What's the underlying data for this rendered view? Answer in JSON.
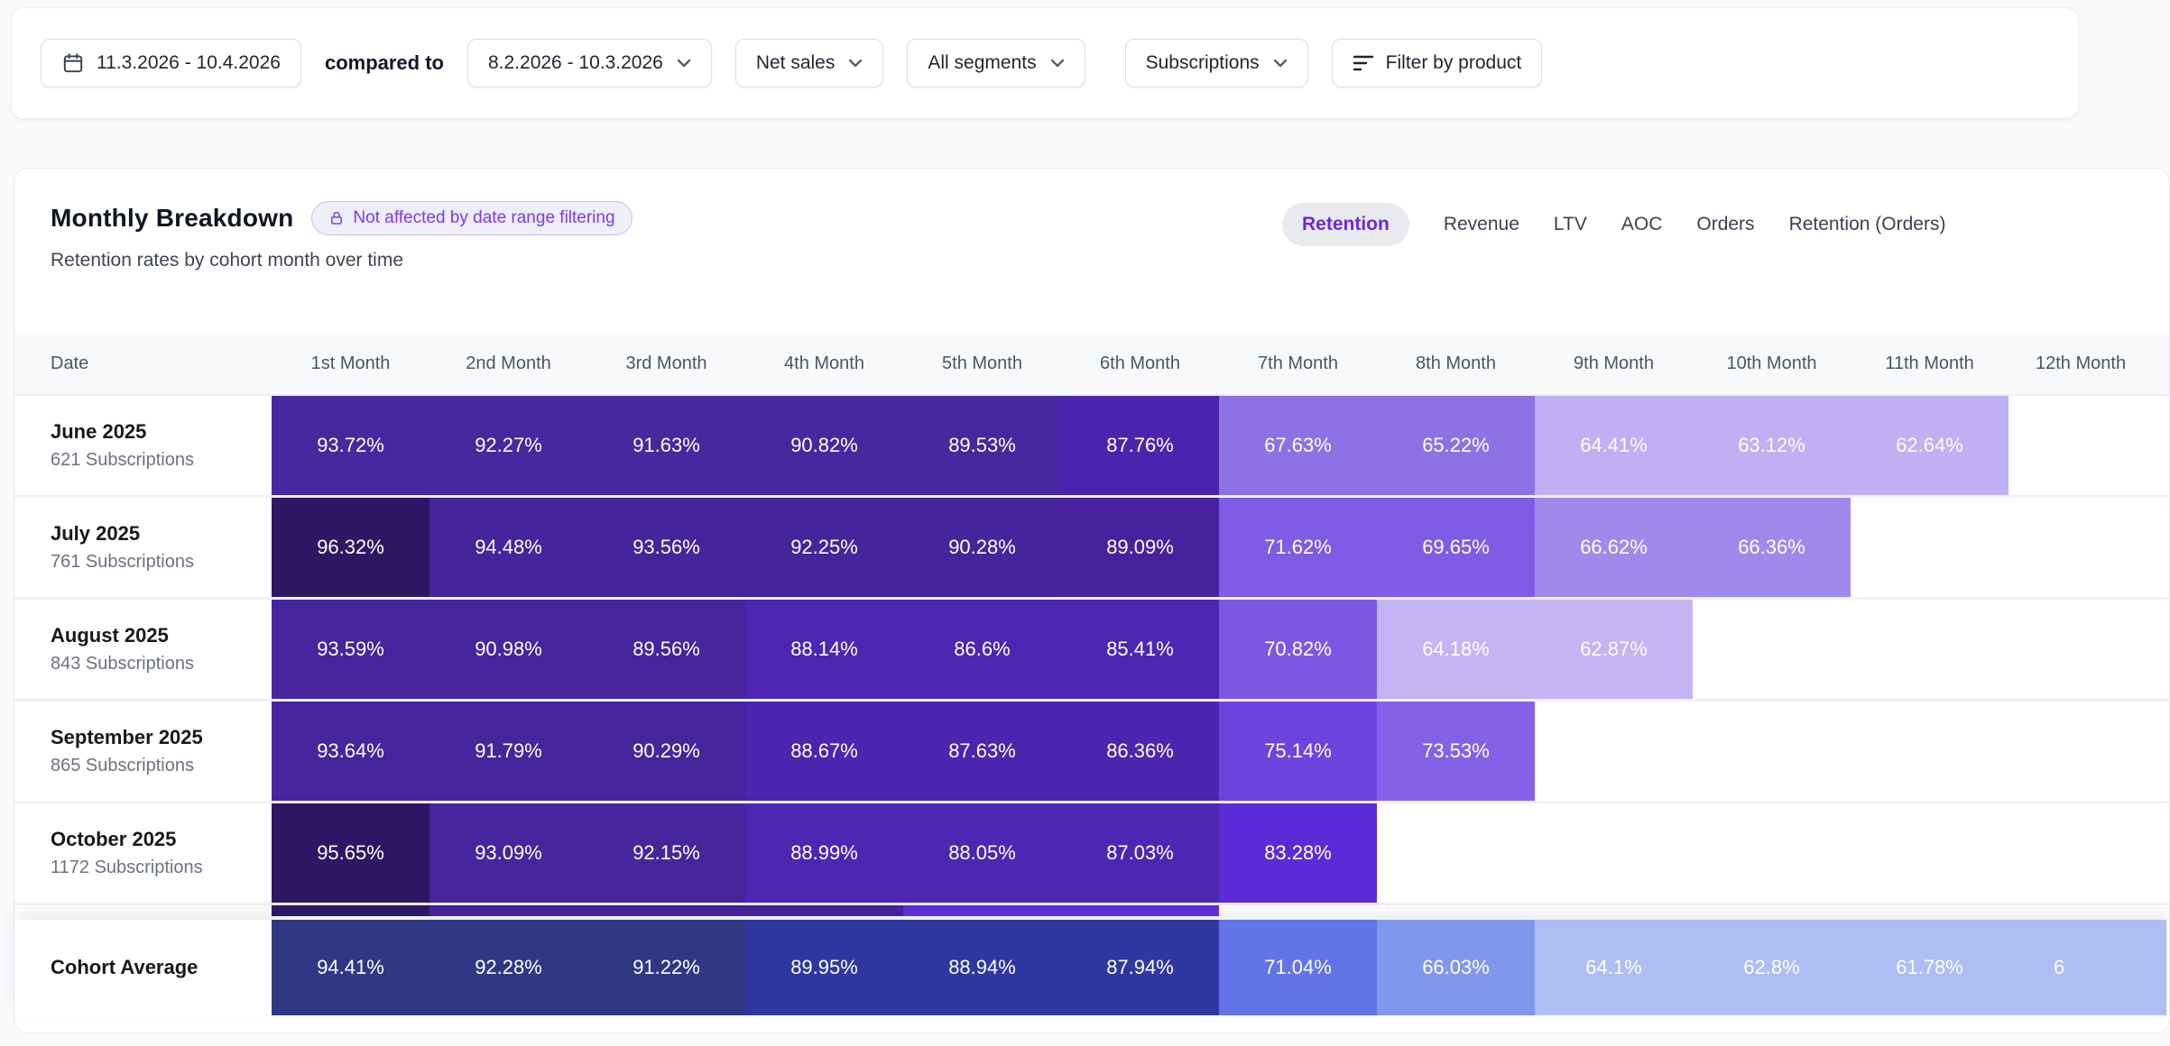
{
  "filter_bar": {
    "date_range": "11.3.2026 - 10.4.2026",
    "compared_to_label": "compared to",
    "comparison_range": "8.2.2026 - 10.3.2026",
    "metric_dropdown": "Net sales",
    "segments_dropdown": "All segments",
    "type_dropdown": "Subscriptions",
    "filter_button_label": "Filter by product"
  },
  "panel": {
    "title": "Monthly Breakdown",
    "badge_label": "Not affected by date range filtering",
    "subtitle": "Retention rates by cohort month over time",
    "tabs": [
      {
        "label": "Retention",
        "active": true
      },
      {
        "label": "Revenue",
        "active": false
      },
      {
        "label": "LTV",
        "active": false
      },
      {
        "label": "AOC",
        "active": false
      },
      {
        "label": "Orders",
        "active": false
      },
      {
        "label": "Retention (Orders)",
        "active": false
      }
    ]
  },
  "colors": {
    "accent_purple": "#7C3AED",
    "active_tab_text": "#6D28D9",
    "header_bg": "#F8F9FB"
  },
  "table": {
    "columns": [
      "Date",
      "1st Month",
      "2nd Month",
      "3rd Month",
      "4th Month",
      "5th Month",
      "6th Month",
      "7th Month",
      "8th Month",
      "9th Month",
      "10th Month",
      "11th Month",
      "12th Month"
    ],
    "rows": [
      {
        "cohort": "June 2025",
        "subscriptions": "621 Subscriptions",
        "partial": false,
        "cells": [
          {
            "v": "93.72%",
            "bg": "#48289F"
          },
          {
            "v": "92.27%",
            "bg": "#48289F"
          },
          {
            "v": "91.63%",
            "bg": "#48289F"
          },
          {
            "v": "90.82%",
            "bg": "#48289F"
          },
          {
            "v": "89.53%",
            "bg": "#48289F"
          },
          {
            "v": "87.76%",
            "bg": "#4B23AF"
          },
          {
            "v": "67.63%",
            "bg": "#8C72E4"
          },
          {
            "v": "65.22%",
            "bg": "#8C72E4"
          },
          {
            "v": "64.41%",
            "bg": "#BEB0F2"
          },
          {
            "v": "63.12%",
            "bg": "#BEB0F2"
          },
          {
            "v": "62.64%",
            "bg": "#BEB0F2"
          }
        ]
      },
      {
        "cohort": "July 2025",
        "subscriptions": "761 Subscriptions",
        "partial": false,
        "cells": [
          {
            "v": "96.32%",
            "bg": "#2E1765"
          },
          {
            "v": "94.48%",
            "bg": "#45249C"
          },
          {
            "v": "93.56%",
            "bg": "#45249C"
          },
          {
            "v": "92.25%",
            "bg": "#45249C"
          },
          {
            "v": "90.28%",
            "bg": "#45249C"
          },
          {
            "v": "89.09%",
            "bg": "#48219F"
          },
          {
            "v": "71.62%",
            "bg": "#7F5BE6"
          },
          {
            "v": "69.65%",
            "bg": "#7F5BE6"
          },
          {
            "v": "66.62%",
            "bg": "#9F8AEC"
          },
          {
            "v": "66.36%",
            "bg": "#9F8AEC"
          }
        ]
      },
      {
        "cohort": "August 2025",
        "subscriptions": "843 Subscriptions",
        "partial": false,
        "cells": [
          {
            "v": "93.59%",
            "bg": "#46259D"
          },
          {
            "v": "90.98%",
            "bg": "#46259D"
          },
          {
            "v": "89.56%",
            "bg": "#46259D"
          },
          {
            "v": "88.14%",
            "bg": "#4D26B3"
          },
          {
            "v": "86.6%",
            "bg": "#4D26B3"
          },
          {
            "v": "85.41%",
            "bg": "#4D26B3"
          },
          {
            "v": "70.82%",
            "bg": "#7D57E3"
          },
          {
            "v": "64.18%",
            "bg": "#C3B4F3"
          },
          {
            "v": "62.87%",
            "bg": "#C3B4F3"
          }
        ]
      },
      {
        "cohort": "September 2025",
        "subscriptions": "865 Subscriptions",
        "partial": false,
        "cells": [
          {
            "v": "93.64%",
            "bg": "#46259D"
          },
          {
            "v": "91.79%",
            "bg": "#46259D"
          },
          {
            "v": "90.29%",
            "bg": "#46259D"
          },
          {
            "v": "88.67%",
            "bg": "#4C25B0"
          },
          {
            "v": "87.63%",
            "bg": "#4C25B0"
          },
          {
            "v": "86.36%",
            "bg": "#4C25B0"
          },
          {
            "v": "75.14%",
            "bg": "#6F43DD"
          },
          {
            "v": "73.53%",
            "bg": "#8561E8"
          }
        ]
      },
      {
        "cohort": "October 2025",
        "subscriptions": "1172 Subscriptions",
        "partial": false,
        "cells": [
          {
            "v": "95.65%",
            "bg": "#2E1765"
          },
          {
            "v": "93.09%",
            "bg": "#46259D"
          },
          {
            "v": "92.15%",
            "bg": "#46259D"
          },
          {
            "v": "88.99%",
            "bg": "#4D26B3"
          },
          {
            "v": "88.05%",
            "bg": "#4D26B3"
          },
          {
            "v": "87.03%",
            "bg": "#4D26B3"
          },
          {
            "v": "83.28%",
            "bg": "#5B2BD7"
          }
        ]
      },
      {
        "cohort": "",
        "subscriptions": "",
        "partial": true,
        "cells": [
          {
            "v": "",
            "bg": "#2E1765"
          },
          {
            "v": "",
            "bg": "#45219A"
          },
          {
            "v": "",
            "bg": "#45219A"
          },
          {
            "v": "",
            "bg": "#45219A"
          },
          {
            "v": "",
            "bg": "#5E2CD8"
          },
          {
            "v": "",
            "bg": "#5E2CD8"
          }
        ]
      }
    ],
    "average": {
      "label": "Cohort Average",
      "cells": [
        {
          "v": "94.41%",
          "bg": "#2F3884"
        },
        {
          "v": "92.28%",
          "bg": "#2F3884"
        },
        {
          "v": "91.22%",
          "bg": "#2F3884"
        },
        {
          "v": "89.95%",
          "bg": "#2F37A0"
        },
        {
          "v": "88.94%",
          "bg": "#2F37A0"
        },
        {
          "v": "87.94%",
          "bg": "#2F37A0"
        },
        {
          "v": "71.04%",
          "bg": "#6274E8"
        },
        {
          "v": "66.03%",
          "bg": "#8097EC"
        },
        {
          "v": "64.1%",
          "bg": "#AEBDF4"
        },
        {
          "v": "62.8%",
          "bg": "#AEBDF4"
        },
        {
          "v": "61.78%",
          "bg": "#AEBDF4"
        },
        {
          "v": "6",
          "bg": "#AEBDF4",
          "clipped": true
        }
      ]
    }
  }
}
